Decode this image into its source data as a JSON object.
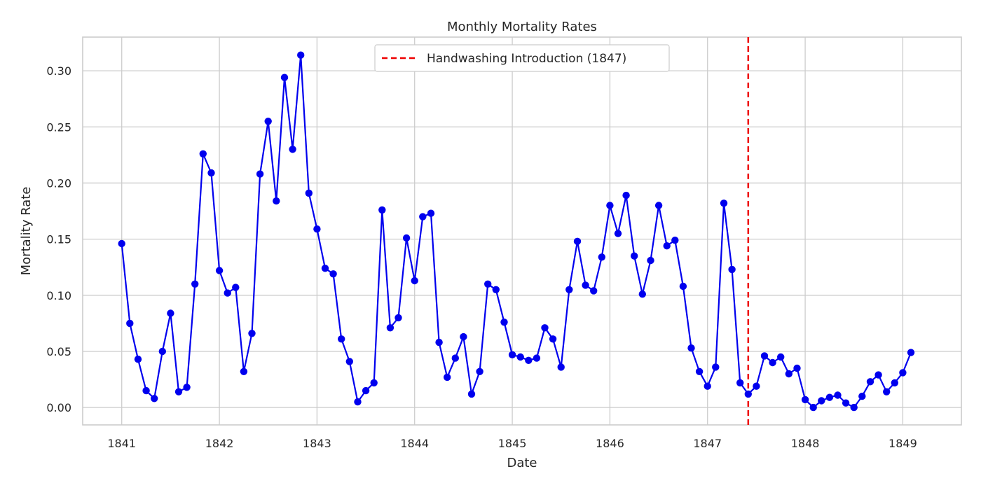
{
  "chart_data": {
    "type": "line",
    "title": "Monthly Mortality Rates",
    "xlabel": "Date",
    "ylabel": "Mortality Rate",
    "xlim": [
      1840.6,
      1849.6
    ],
    "ylim": [
      -0.0155,
      0.33
    ],
    "grid": true,
    "legend_position": "top-center",
    "x_ticks": [
      1841,
      1842,
      1843,
      1844,
      1845,
      1846,
      1847,
      1848,
      1849
    ],
    "x_tick_labels": [
      "1841",
      "1842",
      "1843",
      "1844",
      "1845",
      "1846",
      "1847",
      "1848",
      "1849"
    ],
    "y_ticks": [
      0.0,
      0.05,
      0.1,
      0.15,
      0.2,
      0.25,
      0.3
    ],
    "y_tick_labels": [
      "0.00",
      "0.05",
      "0.10",
      "0.15",
      "0.20",
      "0.25",
      "0.30"
    ],
    "series": [
      {
        "name": "",
        "color": "#0000ee",
        "marker": "circle",
        "x_start": 1841.0,
        "x_step_months": 1,
        "values": [
          0.146,
          0.075,
          0.043,
          0.015,
          0.008,
          0.05,
          0.084,
          0.014,
          0.018,
          0.11,
          0.226,
          0.209,
          0.122,
          0.102,
          0.107,
          0.032,
          0.066,
          0.208,
          0.255,
          0.184,
          0.294,
          0.23,
          0.314,
          0.191,
          0.159,
          0.124,
          0.119,
          0.061,
          0.041,
          0.005,
          0.015,
          0.022,
          0.176,
          0.071,
          0.08,
          0.151,
          0.113,
          0.17,
          0.173,
          0.058,
          0.027,
          0.044,
          0.063,
          0.012,
          0.032,
          0.11,
          0.105,
          0.076,
          0.047,
          0.045,
          0.042,
          0.044,
          0.071,
          0.061,
          0.036,
          0.105,
          0.148,
          0.109,
          0.104,
          0.134,
          0.18,
          0.155,
          0.189,
          0.135,
          0.101,
          0.131,
          0.18,
          0.144,
          0.149,
          0.108,
          0.053,
          0.032,
          0.019,
          0.036,
          0.182,
          0.123,
          0.022,
          0.012,
          0.019,
          0.046,
          0.04,
          0.045,
          0.03,
          0.035,
          0.007,
          0.0,
          0.006,
          0.009,
          0.011,
          0.004,
          0.0,
          0.01,
          0.023,
          0.029,
          0.014,
          0.022,
          0.031,
          0.049
        ]
      }
    ],
    "vline": {
      "x": 1847.417,
      "label": "Handwashing Introduction (1847)",
      "color": "#ee0000",
      "style": "dashed"
    }
  }
}
